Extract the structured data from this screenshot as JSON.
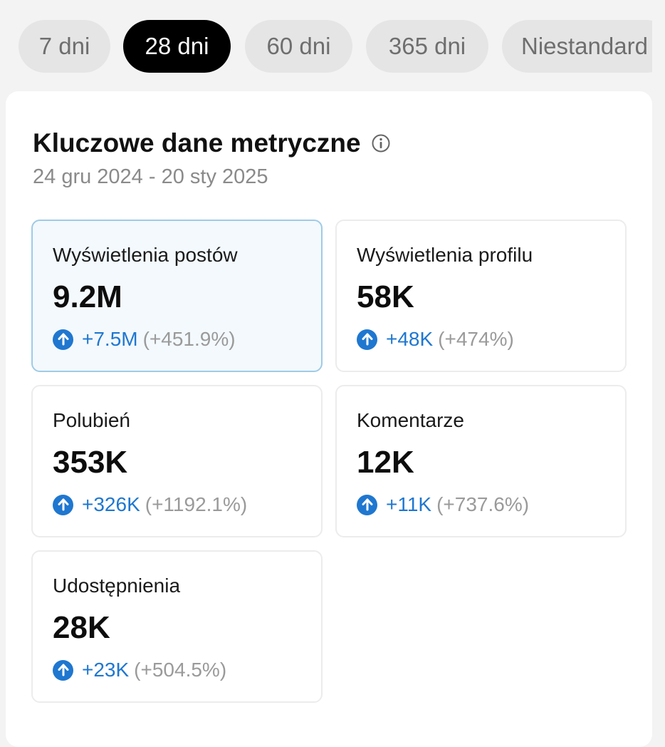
{
  "tabs": [
    {
      "label": "7 dni",
      "active": false
    },
    {
      "label": "28 dni",
      "active": true
    },
    {
      "label": "60 dni",
      "active": false
    },
    {
      "label": "365 dni",
      "active": false
    },
    {
      "label": "Niestandard",
      "active": false
    }
  ],
  "section": {
    "title": "Kluczowe dane metryczne",
    "info_icon": "info-circle-icon",
    "date_range": "24 gru 2024 - 20 sty 2025"
  },
  "metrics": [
    {
      "label": "Wyświetlenia postów",
      "value": "9.2M",
      "delta": "+7.5M",
      "percent": "(+451.9%)",
      "selected": true
    },
    {
      "label": "Wyświetlenia profilu",
      "value": "58K",
      "delta": "+48K",
      "percent": "(+474%)",
      "selected": false
    },
    {
      "label": "Polubień",
      "value": "353K",
      "delta": "+326K",
      "percent": "(+1192.1%)",
      "selected": false
    },
    {
      "label": "Komentarze",
      "value": "12K",
      "delta": "+11K",
      "percent": "(+737.6%)",
      "selected": false
    },
    {
      "label": "Udostępnienia",
      "value": "28K",
      "delta": "+23K",
      "percent": "(+504.5%)",
      "selected": false
    }
  ],
  "colors": {
    "accent": "#1f77d0",
    "active_tab": "#000000",
    "inactive_tab": "#e5e5e5",
    "selected_card_bg": "#f3f9fd",
    "selected_card_border": "#9fcbe6"
  }
}
